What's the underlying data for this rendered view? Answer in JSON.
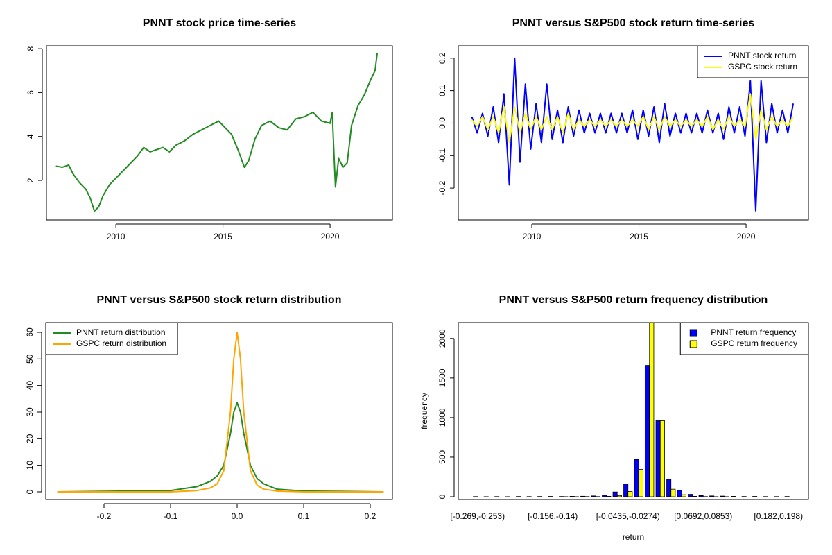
{
  "chart_data": [
    {
      "type": "line",
      "title": "PNNT stock price time-series",
      "color": "#228b22",
      "x": [
        2007.2,
        2007.5,
        2007.8,
        2008.0,
        2008.3,
        2008.6,
        2008.8,
        2009.0,
        2009.2,
        2009.4,
        2009.7,
        2010.0,
        2010.3,
        2010.6,
        2011.0,
        2011.3,
        2011.6,
        2011.9,
        2012.2,
        2012.5,
        2012.8,
        2013.2,
        2013.6,
        2014.0,
        2014.4,
        2014.8,
        2015.1,
        2015.4,
        2015.7,
        2016.0,
        2016.2,
        2016.5,
        2016.8,
        2017.2,
        2017.6,
        2018.0,
        2018.4,
        2018.8,
        2019.2,
        2019.6,
        2020.0,
        2020.1,
        2020.2,
        2020.25,
        2020.4,
        2020.6,
        2020.8,
        2021.0,
        2021.3,
        2021.6,
        2021.9,
        2022.1,
        2022.2
      ],
      "values": [
        2.65,
        2.6,
        2.7,
        2.3,
        1.9,
        1.6,
        1.2,
        0.6,
        0.8,
        1.3,
        1.8,
        2.1,
        2.4,
        2.7,
        3.1,
        3.5,
        3.3,
        3.4,
        3.5,
        3.3,
        3.6,
        3.8,
        4.1,
        4.3,
        4.5,
        4.7,
        4.4,
        4.1,
        3.4,
        2.6,
        2.9,
        3.9,
        4.5,
        4.7,
        4.4,
        4.3,
        4.8,
        4.9,
        5.1,
        4.7,
        4.6,
        5.1,
        2.8,
        1.7,
        3.0,
        2.6,
        2.8,
        4.5,
        5.4,
        5.9,
        6.6,
        7.0,
        7.8
      ],
      "xlim": [
        2006.76,
        2022.91
      ],
      "ylim": [
        0.2,
        8.13
      ],
      "xticks": [
        2010,
        2015,
        2020
      ],
      "yticks": [
        2,
        4,
        6,
        8
      ]
    },
    {
      "type": "line",
      "title": "PNNT versus S&P500 stock return time-series",
      "legend": "topright",
      "x": [
        2007.2,
        2007.45,
        2007.7,
        2007.95,
        2008.2,
        2008.45,
        2008.7,
        2008.95,
        2009.2,
        2009.45,
        2009.7,
        2009.95,
        2010.2,
        2010.45,
        2010.7,
        2010.95,
        2011.2,
        2011.45,
        2011.7,
        2011.95,
        2012.2,
        2012.45,
        2012.7,
        2012.95,
        2013.2,
        2013.45,
        2013.7,
        2013.95,
        2014.2,
        2014.45,
        2014.7,
        2014.95,
        2015.2,
        2015.45,
        2015.7,
        2015.95,
        2016.2,
        2016.45,
        2016.7,
        2016.95,
        2017.2,
        2017.45,
        2017.7,
        2017.95,
        2018.2,
        2018.45,
        2018.7,
        2018.95,
        2019.2,
        2019.45,
        2019.7,
        2019.95,
        2020.2,
        2020.45,
        2020.7,
        2020.95,
        2021.2,
        2021.45,
        2021.7,
        2021.95,
        2022.2
      ],
      "series": [
        {
          "name": "PNNT stock return",
          "color": "#0000ff",
          "values": [
            0.02,
            -0.03,
            0.03,
            -0.04,
            0.05,
            -0.06,
            0.09,
            -0.19,
            0.2,
            -0.12,
            0.12,
            -0.08,
            0.06,
            -0.06,
            0.12,
            -0.05,
            0.04,
            -0.06,
            0.05,
            -0.04,
            0.04,
            -0.03,
            0.03,
            -0.03,
            0.03,
            -0.03,
            0.03,
            -0.03,
            0.03,
            -0.03,
            0.04,
            -0.05,
            0.04,
            -0.04,
            0.05,
            -0.06,
            0.06,
            -0.04,
            0.03,
            -0.03,
            0.03,
            -0.03,
            0.03,
            -0.03,
            0.04,
            -0.03,
            0.03,
            -0.05,
            0.05,
            -0.03,
            0.05,
            -0.04,
            0.13,
            -0.27,
            0.13,
            -0.06,
            0.06,
            -0.03,
            0.04,
            -0.03,
            0.06
          ]
        },
        {
          "name": "GSPC stock return",
          "color": "#ffff00",
          "values": [
            0.01,
            -0.01,
            0.02,
            -0.02,
            0.02,
            -0.03,
            0.05,
            -0.06,
            0.05,
            -0.03,
            0.03,
            -0.02,
            0.02,
            -0.02,
            0.02,
            -0.02,
            0.02,
            -0.03,
            0.03,
            -0.02,
            0.01,
            -0.01,
            0.01,
            -0.01,
            0.01,
            -0.01,
            0.01,
            -0.01,
            0.01,
            -0.01,
            0.01,
            -0.01,
            0.02,
            -0.02,
            0.02,
            -0.02,
            0.02,
            -0.01,
            0.01,
            -0.01,
            0.01,
            -0.01,
            0.01,
            -0.01,
            0.02,
            -0.02,
            0.01,
            -0.02,
            0.02,
            -0.01,
            0.01,
            -0.01,
            0.09,
            -0.05,
            0.04,
            -0.02,
            0.02,
            -0.01,
            0.01,
            -0.01,
            0.02
          ]
        }
      ],
      "xlim": [
        2006.57,
        2022.91
      ],
      "ylim": [
        -0.298,
        0.238
      ],
      "xticks": [
        2010,
        2015,
        2020
      ],
      "yticks": [
        -0.2,
        -0.1,
        {
          "value": 0,
          "label": "0.0"
        },
        0.1,
        0.2
      ]
    },
    {
      "type": "line",
      "title": "PNNT versus S&P500 stock return distribution",
      "legend": "topleft",
      "x": [
        -0.27,
        -0.1,
        -0.06,
        -0.04,
        -0.03,
        -0.02,
        -0.01,
        -0.005,
        0,
        0.005,
        0.01,
        0.02,
        0.03,
        0.04,
        0.06,
        0.1,
        0.22
      ],
      "series": [
        {
          "name": "PNNT return distribution",
          "color": "#228b22",
          "values": [
            0,
            0.5,
            2,
            4,
            6,
            10,
            22,
            30,
            33.5,
            30,
            22,
            10,
            5,
            3,
            1,
            0.3,
            0
          ]
        },
        {
          "name": "GSPC return distribution",
          "color": "#ffa500",
          "values": [
            0,
            0,
            0.5,
            1.5,
            3,
            8,
            30,
            50,
            60,
            50,
            30,
            8,
            2.5,
            1,
            0.3,
            0,
            0
          ]
        }
      ],
      "xlim": [
        -0.2875,
        0.2333
      ],
      "ylim": [
        -2.87,
        63.65
      ],
      "xticks": [
        -0.2,
        -0.1,
        {
          "value": 0,
          "label": "0.0"
        },
        0.1,
        0.2
      ],
      "yticks": [
        0,
        10,
        20,
        30,
        40,
        50,
        60
      ]
    },
    {
      "type": "bar",
      "title": "PNNT versus S&P500 return frequency distribution",
      "legend": "topright",
      "xlabel": "return",
      "ylabel": "frequency",
      "categories": [
        "[-0.269,-0.253)",
        null,
        null,
        null,
        null,
        null,
        null,
        "[-0.156,-0.14)",
        null,
        null,
        null,
        null,
        null,
        null,
        "[-0.0435,-0.0274)",
        null,
        null,
        null,
        null,
        null,
        null,
        "[0.0692,0.0853)",
        null,
        null,
        null,
        null,
        null,
        null,
        "[0.182,0.198)",
        null
      ],
      "series": [
        {
          "name": "PNNT return frequency",
          "color": "#0000ff",
          "values": [
            2,
            1,
            2,
            1,
            3,
            2,
            3,
            4,
            3,
            5,
            6,
            10,
            20,
            60,
            160,
            470,
            1660,
            960,
            220,
            80,
            30,
            15,
            10,
            8,
            5,
            3,
            4,
            2,
            2,
            3
          ]
        },
        {
          "name": "GSPC return frequency",
          "color": "#ffff00",
          "values": [
            0,
            0,
            0,
            0,
            0,
            0,
            0,
            0,
            1,
            1,
            2,
            2,
            5,
            15,
            65,
            345,
            2300,
            960,
            95,
            25,
            5,
            2,
            1,
            1,
            0,
            0,
            0,
            0,
            0,
            0
          ]
        }
      ],
      "ylim": [
        -35,
        2200
      ],
      "yticks": [
        0,
        500,
        1000,
        1500,
        2000
      ]
    }
  ]
}
